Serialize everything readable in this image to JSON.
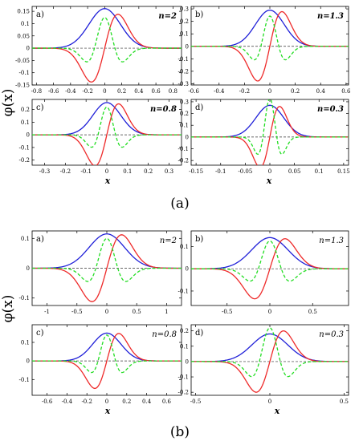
{
  "figure": {
    "ylabel": "φ(x)",
    "xlabel": "x",
    "group_labels": [
      "(a)",
      "(b)"
    ]
  },
  "colors": {
    "blue": "#1f1fd8",
    "red": "#ee2a2a",
    "green": "#22dd22",
    "zero": "#333333"
  },
  "chart_data": [
    {
      "type": "line",
      "group": "(a)",
      "panel": "a)",
      "n_label": "n=2",
      "xlim": [
        -0.85,
        0.9
      ],
      "ylim": [
        -0.15,
        0.17
      ],
      "xticks": [
        -0.8,
        -0.6,
        -0.4,
        -0.2,
        0,
        0.2,
        0.4,
        0.6,
        0.8
      ],
      "xtick_labels": [
        "-0.8",
        "-0.6",
        "-0.4",
        "-0.2",
        "0",
        "0.2",
        "0.4",
        "0.6",
        "0.8"
      ],
      "yticks": [
        -0.15,
        -0.1,
        -0.05,
        0,
        0.05,
        0.1,
        0.15
      ],
      "ytick_labels": [
        "-0.15",
        "-0.1",
        "-0.05",
        "0",
        "0.05",
        "0.1",
        "0.15"
      ],
      "series": [
        {
          "color": "blue",
          "style": "solid",
          "shape": "gauss",
          "center": 0.0,
          "width": 0.26,
          "amp": 0.161
        },
        {
          "color": "red",
          "style": "solid",
          "shape": "deriv",
          "center": 0.0,
          "width": 0.22,
          "amp": 0.138
        },
        {
          "color": "green",
          "style": "dashed",
          "shape": "hermite2",
          "center": 0.0,
          "width": 0.17,
          "amp": 0.125
        }
      ]
    },
    {
      "type": "line",
      "group": "(a)",
      "panel": "b)",
      "n_label": "n=1.3",
      "xlim": [
        -0.62,
        0.62
      ],
      "ylim": [
        -0.31,
        0.32
      ],
      "xticks": [
        -0.6,
        -0.4,
        -0.2,
        0,
        0.2,
        0.4,
        0.6
      ],
      "xtick_labels": [
        "-0.6",
        "-0.4",
        "-0.2",
        "0",
        "0.2",
        "0.4",
        "0.6"
      ],
      "yticks": [
        -0.3,
        -0.2,
        -0.1,
        0,
        0.1,
        0.2,
        0.3
      ],
      "ytick_labels": [
        "-0.3",
        "-0.2",
        "-0.1",
        "0",
        "0.1",
        "0.2",
        "0.3"
      ],
      "series": [
        {
          "color": "blue",
          "style": "solid",
          "shape": "gauss",
          "center": 0.0,
          "width": 0.16,
          "amp": 0.29
        },
        {
          "color": "red",
          "style": "solid",
          "shape": "deriv",
          "center": 0.0,
          "width": 0.135,
          "amp": 0.278
        },
        {
          "color": "green",
          "style": "dashed",
          "shape": "hermite2",
          "center": 0.0,
          "width": 0.1,
          "amp": 0.243
        }
      ]
    },
    {
      "type": "line",
      "group": "(a)",
      "panel": "c)",
      "n_label": "n=0.8",
      "xlim": [
        -0.36,
        0.36
      ],
      "ylim": [
        -0.24,
        0.28
      ],
      "xticks": [
        -0.3,
        -0.2,
        -0.1,
        0,
        0.1,
        0.2,
        0.3
      ],
      "xtick_labels": [
        "-0.3",
        "-0.2",
        "-0.1",
        "0",
        "0.1",
        "0.2",
        "0.3"
      ],
      "yticks": [
        -0.2,
        -0.1,
        0,
        0.1,
        0.2
      ],
      "ytick_labels": [
        "-0.2",
        "-0.1",
        "0",
        "0.1",
        "0.2"
      ],
      "series": [
        {
          "color": "blue",
          "style": "solid",
          "shape": "gauss",
          "center": 0.0,
          "width": 0.095,
          "amp": 0.255
        },
        {
          "color": "red",
          "style": "solid",
          "shape": "deriv",
          "center": 0.0,
          "width": 0.08,
          "amp": 0.245
        },
        {
          "color": "green",
          "style": "dashed",
          "shape": "hermite2",
          "center": 0.0,
          "width": 0.06,
          "amp": 0.22
        }
      ]
    },
    {
      "type": "line",
      "group": "(a)",
      "panel": "d)",
      "n_label": "n=0.3",
      "xlim": [
        -0.16,
        0.16
      ],
      "ylim": [
        -0.24,
        0.32
      ],
      "xticks": [
        -0.15,
        -0.1,
        -0.05,
        0,
        0.05,
        0.1,
        0.15
      ],
      "xtick_labels": [
        "-0.15",
        "-0.1",
        "-0.05",
        "0",
        "0.05",
        "0.1",
        "0.15"
      ],
      "yticks": [
        -0.2,
        -0.1,
        0,
        0.1,
        0.2,
        0.3
      ],
      "ytick_labels": [
        "-0.2",
        "-0.1",
        "0",
        "0.1",
        "0.2",
        "0.3"
      ],
      "series": [
        {
          "color": "blue",
          "style": "solid",
          "shape": "gauss",
          "center": 0.0,
          "width": 0.04,
          "amp": 0.27
        },
        {
          "color": "red",
          "style": "solid",
          "shape": "deriv",
          "center": 0.0,
          "width": 0.028,
          "amp": 0.26
        },
        {
          "color": "green",
          "style": "dashed",
          "shape": "hermite2",
          "center": 0.0,
          "width": 0.02,
          "amp": 0.33
        }
      ]
    },
    {
      "type": "line",
      "group": "(b)",
      "panel": "a)",
      "n_label": "n=2",
      "xlim": [
        -1.25,
        1.25
      ],
      "ylim": [
        -0.125,
        0.125
      ],
      "xticks": [
        -1,
        -0.5,
        0,
        0.5,
        1
      ],
      "xtick_labels": [
        "-1",
        "-0.5",
        "0",
        "0.5",
        "1"
      ],
      "yticks": [
        -0.1,
        0,
        0.1
      ],
      "ytick_labels": [
        "-0.1",
        "0",
        "0.1"
      ],
      "series": [
        {
          "color": "blue",
          "style": "solid",
          "shape": "gauss",
          "center": 0.0,
          "width": 0.42,
          "amp": 0.115
        },
        {
          "color": "red",
          "style": "solid",
          "shape": "deriv",
          "center": 0.0,
          "width": 0.35,
          "amp": 0.112
        },
        {
          "color": "green",
          "style": "dashed",
          "shape": "hermite2",
          "center": 0.0,
          "width": 0.26,
          "amp": 0.1
        }
      ]
    },
    {
      "type": "line",
      "group": "(b)",
      "panel": "b)",
      "n_label": "n=1.3",
      "xlim": [
        -0.92,
        0.92
      ],
      "ylim": [
        -0.165,
        0.17
      ],
      "xticks": [
        -0.5,
        0,
        0.5
      ],
      "xtick_labels": [
        "-0.5",
        "0",
        "0.5"
      ],
      "yticks": [
        -0.1,
        0,
        0.1
      ],
      "ytick_labels": [
        "-0.1",
        "0",
        "0.1"
      ],
      "series": [
        {
          "color": "blue",
          "style": "solid",
          "shape": "gauss",
          "center": 0.0,
          "width": 0.3,
          "amp": 0.14
        },
        {
          "color": "red",
          "style": "solid",
          "shape": "deriv",
          "center": 0.0,
          "width": 0.25,
          "amp": 0.135
        },
        {
          "color": "green",
          "style": "dashed",
          "shape": "hermite2",
          "center": 0.0,
          "width": 0.19,
          "amp": 0.125
        }
      ]
    },
    {
      "type": "line",
      "group": "(b)",
      "panel": "c)",
      "n_label": "n=0.8",
      "xlim": [
        -0.75,
        0.75
      ],
      "ylim": [
        -0.185,
        0.195
      ],
      "xticks": [
        -0.6,
        -0.4,
        -0.2,
        0,
        0.2,
        0.4,
        0.6
      ],
      "xtick_labels": [
        "-0.6",
        "-0.4",
        "-0.2",
        "0",
        "0.2",
        "0.4",
        "0.6"
      ],
      "yticks": [
        -0.1,
        0,
        0.1
      ],
      "ytick_labels": [
        "-0.1",
        "0",
        "0.1"
      ],
      "series": [
        {
          "color": "blue",
          "style": "solid",
          "shape": "gauss",
          "center": 0.0,
          "width": 0.2,
          "amp": 0.15
        },
        {
          "color": "red",
          "style": "solid",
          "shape": "deriv",
          "center": 0.0,
          "width": 0.17,
          "amp": 0.148
        },
        {
          "color": "green",
          "style": "dashed",
          "shape": "hermite2",
          "center": 0.0,
          "width": 0.125,
          "amp": 0.14
        }
      ]
    },
    {
      "type": "line",
      "group": "(b)",
      "panel": "d)",
      "n_label": "n=0.3",
      "xlim": [
        -0.53,
        0.53
      ],
      "ylim": [
        -0.22,
        0.24
      ],
      "xticks": [
        -0.5,
        0,
        0.5
      ],
      "xtick_labels": [
        "-0.5",
        "0",
        "0.5"
      ],
      "yticks": [
        -0.2,
        -0.1,
        0,
        0.1,
        0.2
      ],
      "ytick_labels": [
        "-0.2",
        "-0.1",
        "0",
        "0.1",
        "0.2"
      ],
      "series": [
        {
          "color": "blue",
          "style": "solid",
          "shape": "gauss",
          "center": 0.0,
          "width": 0.17,
          "amp": 0.18
        },
        {
          "color": "red",
          "style": "solid",
          "shape": "deriv",
          "center": 0.0,
          "width": 0.13,
          "amp": 0.2
        },
        {
          "color": "green",
          "style": "dashed",
          "shape": "hermite2",
          "center": 0.0,
          "width": 0.1,
          "amp": 0.22
        }
      ]
    }
  ]
}
